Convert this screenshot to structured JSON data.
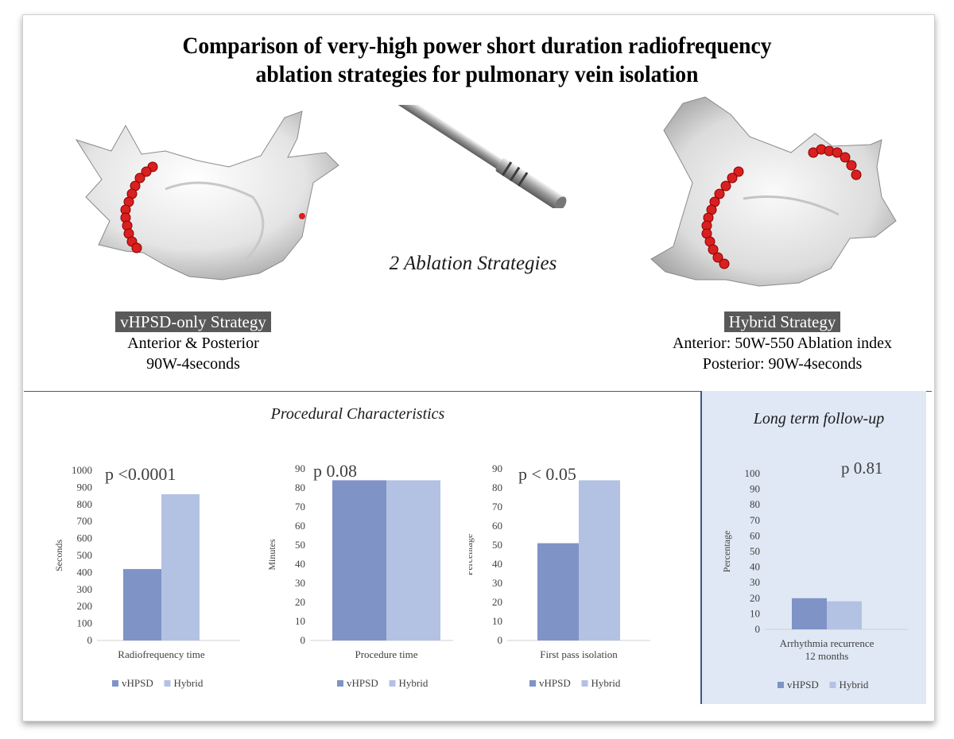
{
  "title": {
    "line1": "Comparison of very-high power short duration radiofrequency",
    "line2": "ablation strategies for pulmonary vein isolation"
  },
  "center_caption": "2 Ablation Strategies",
  "left_strategy": {
    "badge": "vHPSD-only Strategy",
    "line1": "Anterior & Posterior",
    "line2": "90W-4seconds"
  },
  "right_strategy": {
    "badge": "Hybrid Strategy",
    "line1": "Anterior: 50W-550 Ablation index",
    "line2": "Posterior: 90W-4seconds"
  },
  "procedural_title": "Procedural Characteristics",
  "longterm_title": "Long term follow-up",
  "colors": {
    "vhpsd": "#7f93c7",
    "hybrid": "#b3c2e2",
    "divider": "#3d5a8a",
    "panel": "#dfe8f4"
  },
  "chart_data": [
    {
      "type": "bar",
      "categories": [
        "Radiofrequency time"
      ],
      "series": [
        {
          "name": "vHPSD",
          "values": [
            420
          ]
        },
        {
          "name": "Hybrid",
          "values": [
            860
          ]
        }
      ],
      "ylabel": "Seconds",
      "ylim": [
        0,
        1000
      ],
      "yticks": [
        0,
        100,
        200,
        300,
        400,
        500,
        600,
        700,
        800,
        900,
        1000
      ],
      "annotation": "p <0.0001",
      "legend": "bottom",
      "grid": false
    },
    {
      "type": "bar",
      "categories": [
        "Procedure time"
      ],
      "series": [
        {
          "name": "vHPSD",
          "values": [
            84
          ]
        },
        {
          "name": "Hybrid",
          "values": [
            84
          ]
        }
      ],
      "ylabel": "Minutes",
      "ylim": [
        0,
        90
      ],
      "yticks": [
        0,
        10,
        20,
        30,
        40,
        50,
        60,
        70,
        80,
        90
      ],
      "annotation": "p 0.08",
      "legend": "bottom",
      "grid": false
    },
    {
      "type": "bar",
      "categories": [
        "First pass isolation"
      ],
      "series": [
        {
          "name": "vHPSD",
          "values": [
            51
          ]
        },
        {
          "name": "Hybrid",
          "values": [
            84
          ]
        }
      ],
      "ylabel": "Percentage",
      "ylim": [
        0,
        90
      ],
      "yticks": [
        0,
        10,
        20,
        30,
        40,
        50,
        60,
        70,
        80,
        90
      ],
      "annotation": "p < 0.05",
      "legend": "bottom",
      "grid": false
    },
    {
      "type": "bar",
      "categories": [
        "Arrhythmia recurrence 12 months"
      ],
      "category_lines": [
        "Arrhythmia recurrence",
        "12 months"
      ],
      "series": [
        {
          "name": "vHPSD",
          "values": [
            20
          ]
        },
        {
          "name": "Hybrid",
          "values": [
            18
          ]
        }
      ],
      "ylabel": "Percentage",
      "ylim": [
        0,
        100
      ],
      "yticks": [
        0,
        10,
        20,
        30,
        40,
        50,
        60,
        70,
        80,
        90,
        100
      ],
      "annotation": "p 0.81",
      "legend": "bottom",
      "grid": false
    }
  ]
}
